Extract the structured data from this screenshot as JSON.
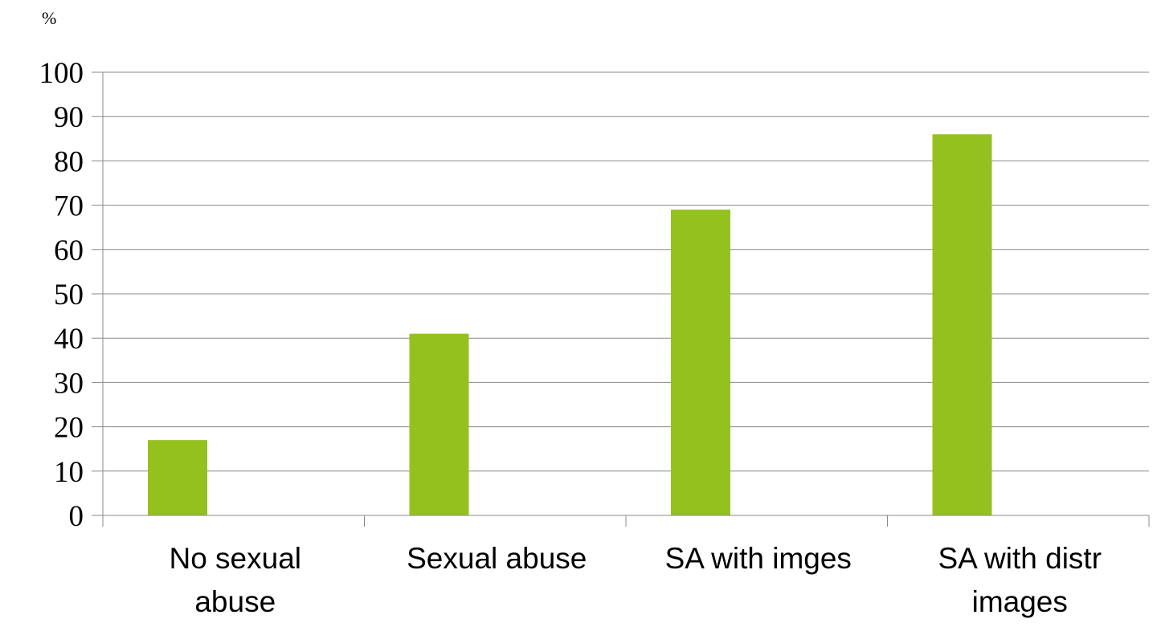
{
  "chart_data": {
    "type": "bar",
    "ylabel": "%",
    "ylim": [
      0,
      100
    ],
    "yticks": [
      "0",
      "10",
      "20",
      "30",
      "40",
      "50",
      "60",
      "70",
      "80",
      "90",
      "100"
    ],
    "categories": [
      [
        "No sexual",
        "abuse"
      ],
      [
        "Sexual abuse"
      ],
      [
        "SA with imges"
      ],
      [
        "SA with distr",
        "images"
      ]
    ],
    "values": [
      17,
      41,
      69,
      86
    ],
    "grid": true,
    "legend": "none",
    "colors": {
      "bar": "#95c11f",
      "grid": "#888888",
      "axis": "#888888"
    }
  }
}
